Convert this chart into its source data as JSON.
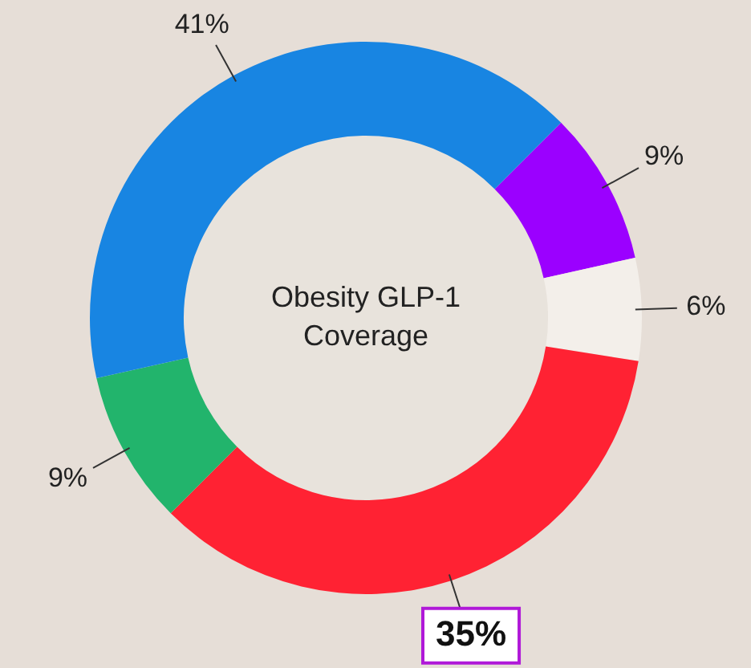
{
  "chart_data": {
    "type": "donut",
    "title": "Obesity GLP-1 Coverage",
    "categories": [
      null,
      null,
      null,
      null,
      null
    ],
    "values": [
      9,
      6,
      35,
      9,
      41
    ],
    "colors": [
      "#9b00ff",
      "#f3efea",
      "#ff2233",
      "#22b46c",
      "#1885e2"
    ],
    "value_labels": [
      "9%",
      "6%",
      "35%",
      "9%",
      "41%"
    ],
    "legend": false
  }
}
